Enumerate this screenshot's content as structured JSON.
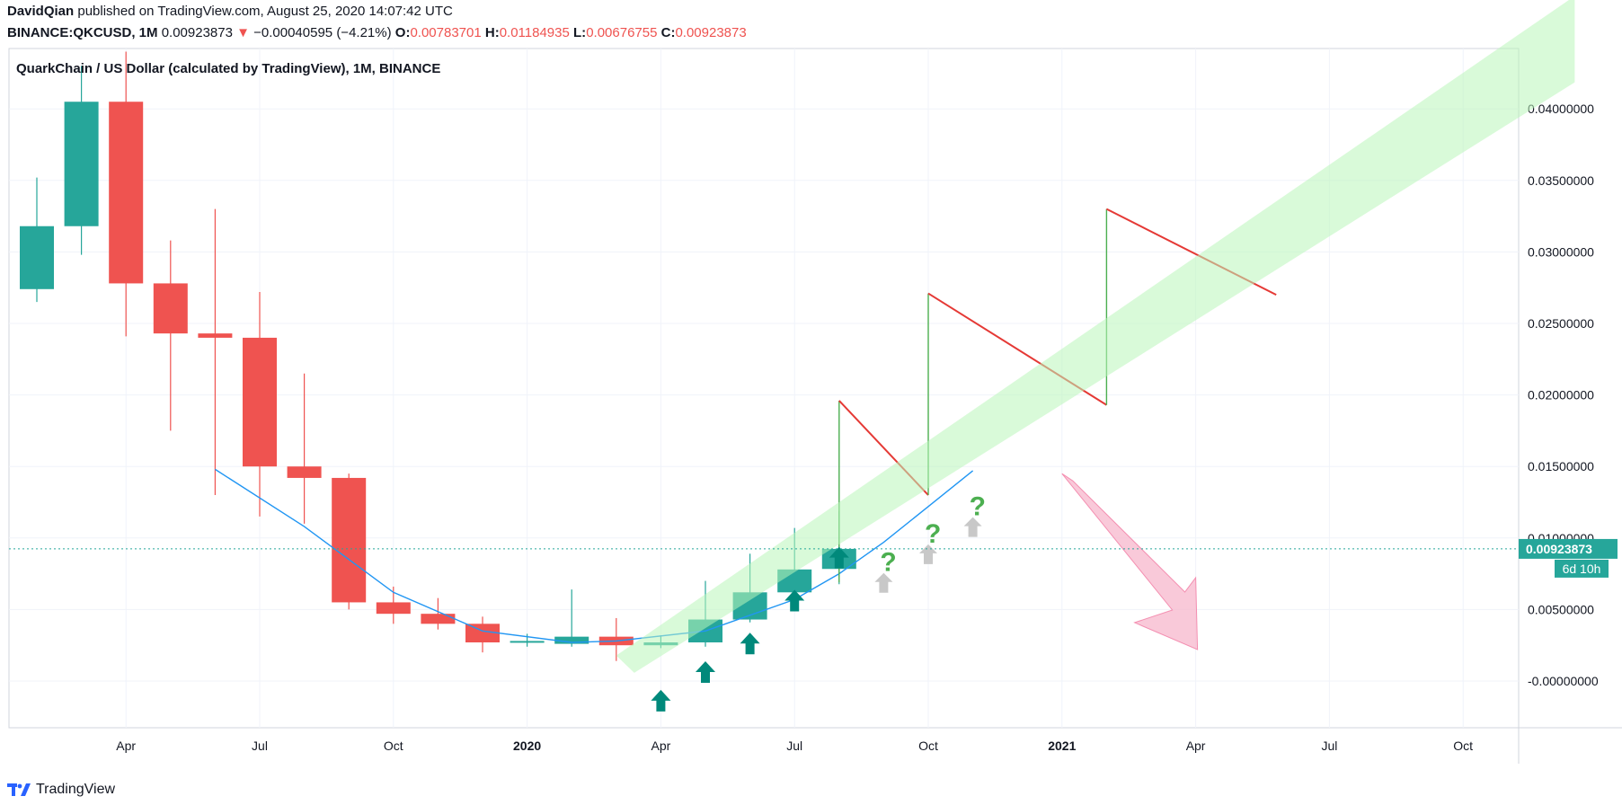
{
  "header": {
    "author": "DavidQian",
    "published_text": "published on TradingView.com, August 25, 2020 14:07:42 UTC",
    "symbol": "BINANCE:QKCUSD, 1M",
    "last_price": "0.00923873",
    "change_arrow": "▼",
    "change": "−0.00040595 (−4.21%)",
    "o_label": "O:",
    "o_value": "0.00783701",
    "h_label": "H:",
    "h_value": "0.01184935",
    "l_label": "L:",
    "l_value": "0.00676755",
    "c_label": "C:",
    "c_value": "0.00923873"
  },
  "footer": {
    "brand": "TradingView",
    "logo_icon": "tradingview-logo-icon"
  },
  "colors": {
    "up": "#26a69a",
    "down": "#ef5350",
    "price_line": "#26a69a",
    "curve": "#2196f3",
    "channel": "#b9f6b9",
    "zig_up": "#4caf50",
    "zig_down": "#e53935",
    "arrow_pink": "#f8bbd0"
  },
  "chart_data": {
    "type": "candlestick",
    "title": "QuarkChain / US Dollar (calculated by TradingView), 1M, BINANCE",
    "price_axis": {
      "ticks": [
        "0.04000000",
        "0.03500000",
        "0.03000000",
        "0.02500000",
        "0.02000000",
        "0.01500000",
        "0.01000000",
        "0.00500000",
        "-0.00000000"
      ]
    },
    "time_axis": {
      "ticks": [
        "Apr",
        "Jul",
        "Oct",
        "2020",
        "Apr",
        "Jul",
        "Oct",
        "2021",
        "Apr",
        "Jul",
        "Oct"
      ],
      "bold": [
        "2020",
        "2021"
      ]
    },
    "last_price_label": "0.00923873",
    "countdown_label": "6d 10h",
    "candles": [
      {
        "month": "2019-02",
        "o": 0.0274,
        "h": 0.0352,
        "l": 0.0265,
        "c": 0.0318
      },
      {
        "month": "2019-03",
        "o": 0.0318,
        "h": 0.043,
        "l": 0.0298,
        "c": 0.0405
      },
      {
        "month": "2019-04",
        "o": 0.0405,
        "h": 0.044,
        "l": 0.0241,
        "c": 0.0278
      },
      {
        "month": "2019-05",
        "o": 0.0278,
        "h": 0.0308,
        "l": 0.0175,
        "c": 0.0243
      },
      {
        "month": "2019-06",
        "o": 0.0243,
        "h": 0.033,
        "l": 0.013,
        "c": 0.024
      },
      {
        "month": "2019-07",
        "o": 0.024,
        "h": 0.0272,
        "l": 0.0115,
        "c": 0.015
      },
      {
        "month": "2019-08",
        "o": 0.015,
        "h": 0.0215,
        "l": 0.011,
        "c": 0.0142
      },
      {
        "month": "2019-09",
        "o": 0.0142,
        "h": 0.0145,
        "l": 0.005,
        "c": 0.0055
      },
      {
        "month": "2019-10",
        "o": 0.0055,
        "h": 0.0066,
        "l": 0.004,
        "c": 0.0047
      },
      {
        "month": "2019-11",
        "o": 0.0047,
        "h": 0.0058,
        "l": 0.0036,
        "c": 0.004
      },
      {
        "month": "2019-12",
        "o": 0.004,
        "h": 0.0045,
        "l": 0.002,
        "c": 0.0027
      },
      {
        "month": "2020-01",
        "o": 0.0027,
        "h": 0.0033,
        "l": 0.0024,
        "c": 0.0028
      },
      {
        "month": "2020-02",
        "o": 0.0026,
        "h": 0.0064,
        "l": 0.0024,
        "c": 0.0031
      },
      {
        "month": "2020-03",
        "o": 0.0031,
        "h": 0.0044,
        "l": 0.0014,
        "c": 0.0025
      },
      {
        "month": "2020-04",
        "o": 0.0025,
        "h": 0.0032,
        "l": 0.0023,
        "c": 0.0027
      },
      {
        "month": "2020-05",
        "o": 0.0027,
        "h": 0.007,
        "l": 0.0024,
        "c": 0.0043
      },
      {
        "month": "2020-06",
        "o": 0.0043,
        "h": 0.0089,
        "l": 0.0041,
        "c": 0.0062
      },
      {
        "month": "2020-07",
        "o": 0.0062,
        "h": 0.0107,
        "l": 0.0057,
        "c": 0.0078
      },
      {
        "month": "2020-08",
        "o": 0.00783701,
        "h": 0.01184935,
        "l": 0.00676755,
        "c": 0.00923873
      }
    ],
    "drawings": {
      "curve": [
        [
          "2019-06",
          0.0148
        ],
        [
          "2019-08",
          0.0108
        ],
        [
          "2019-10",
          0.0062
        ],
        [
          "2019-12",
          0.0035
        ],
        [
          "2020-02",
          0.0027
        ],
        [
          "2020-03",
          0.0028
        ],
        [
          "2020-05",
          0.0035
        ],
        [
          "2020-07",
          0.0057
        ],
        [
          "2020-08",
          0.0075
        ],
        [
          "2020-09",
          0.0097
        ],
        [
          "2020-10",
          0.0122
        ],
        [
          "2020-11",
          0.0147
        ]
      ],
      "channel": [
        [
          [
            "2020-03",
            0.0012
          ],
          [
            "2021-12",
            0.043
          ]
        ],
        [
          [
            "2021-08",
            0.044
          ],
          [
            "2021-12",
            0.045
          ],
          [
            "2021-12",
            0.0395
          ]
        ]
      ],
      "zigzag": [
        [
          "2020-08",
          0.0069
        ],
        [
          "2020-08",
          0.0196
        ],
        [
          "2020-10",
          0.013
        ],
        [
          "2020-10",
          0.0271
        ],
        [
          "2021-02",
          0.0193
        ],
        [
          "2021-02",
          0.033
        ],
        [
          "2021-05",
          0.027
        ]
      ],
      "up_arrows": [
        [
          "2020-04",
          -0.0015
        ],
        [
          "2020-05",
          0.0005
        ],
        [
          "2020-06",
          0.0025
        ],
        [
          "2020-07",
          0.0055
        ],
        [
          "2020-08",
          0.0085
        ]
      ],
      "question_marks": [
        [
          "2020-09",
          0.0068
        ],
        [
          "2020-10",
          0.0088
        ],
        [
          "2020-11",
          0.0107
        ]
      ],
      "pink_arrow": [
        [
          "2021-01",
          0.0145
        ],
        [
          "2021-04",
          0.0022
        ]
      ]
    }
  }
}
